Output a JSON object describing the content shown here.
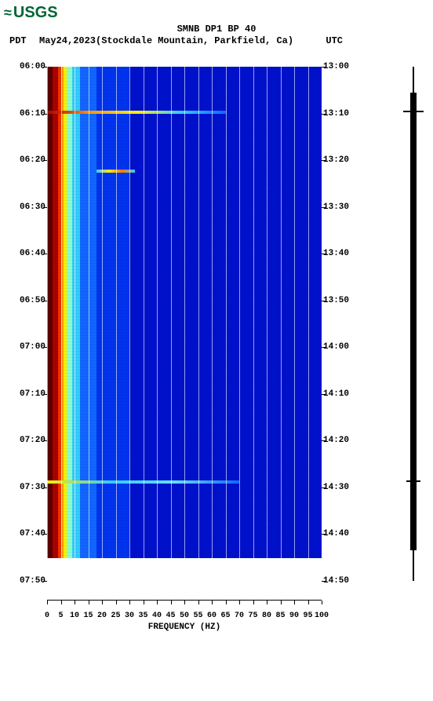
{
  "logo": {
    "prefix_icon": "≈",
    "text": "USGS",
    "color": "#006633"
  },
  "header": {
    "title": "SMNB DP1 BP 40",
    "left_tz": "PDT",
    "date_location": "May24,2023(Stockdale Mountain, Parkfield, Ca)",
    "right_tz": "UTC"
  },
  "chart": {
    "type": "spectrogram",
    "background_color": "#ffffff",
    "xlabel": "FREQUENCY (HZ)",
    "xlim": [
      0,
      100
    ],
    "xticks": [
      0,
      5,
      10,
      15,
      20,
      25,
      30,
      35,
      40,
      45,
      50,
      55,
      60,
      65,
      70,
      75,
      80,
      85,
      90,
      95,
      100
    ],
    "y_left_ticks": [
      "06:00",
      "06:10",
      "06:20",
      "06:30",
      "06:40",
      "06:50",
      "07:00",
      "07:10",
      "07:20",
      "07:30",
      "07:40",
      "07:50"
    ],
    "y_right_ticks": [
      "13:00",
      "13:10",
      "13:20",
      "13:30",
      "13:40",
      "13:50",
      "14:00",
      "14:10",
      "14:20",
      "14:30",
      "14:40",
      "14:50"
    ],
    "y_positions_pct": [
      0,
      9.09,
      18.18,
      27.27,
      36.36,
      45.45,
      54.54,
      63.63,
      72.72,
      81.81,
      90.9,
      100
    ],
    "data_end_pct": 95.5,
    "color_bands": [
      {
        "freq_from": 0,
        "freq_to": 2,
        "color": "#5a0000"
      },
      {
        "freq_from": 2,
        "freq_to": 4,
        "color": "#aa0000"
      },
      {
        "freq_from": 4,
        "freq_to": 5,
        "color": "#ee3300"
      },
      {
        "freq_from": 5,
        "freq_to": 6,
        "color": "#ff9900"
      },
      {
        "freq_from": 6,
        "freq_to": 7,
        "color": "#ffee00"
      },
      {
        "freq_from": 7,
        "freq_to": 9,
        "color": "#88ffcc"
      },
      {
        "freq_from": 9,
        "freq_to": 12,
        "color": "#33ccff"
      },
      {
        "freq_from": 12,
        "freq_to": 18,
        "color": "#1166ff"
      },
      {
        "freq_from": 18,
        "freq_to": 30,
        "color": "#0033ee"
      },
      {
        "freq_from": 30,
        "freq_to": 100,
        "color": "#0011cc"
      }
    ],
    "events": [
      {
        "time_pct": 8.6,
        "freq_to": 65,
        "colors": [
          "#aa0000",
          "#ff9900",
          "#ffee00",
          "#33ccff",
          "#1166ff"
        ]
      },
      {
        "time_pct": 20.0,
        "freq_from": 18,
        "freq_to": 32,
        "colors": [
          "#33ccff",
          "#ffee00",
          "#ff7700",
          "#33ccff"
        ]
      },
      {
        "time_pct": 80.5,
        "freq_to": 70,
        "colors": [
          "#ffee00",
          "#33ccff",
          "#66ddff",
          "#1166ff"
        ]
      }
    ],
    "gridline_color": "#ffffff",
    "tick_fontsize": 11,
    "label_fontsize": 11
  },
  "waveform": {
    "color": "#000000",
    "noise_segments_pct": [
      [
        5,
        94
      ]
    ],
    "spikes": [
      {
        "pos_pct": 8.6,
        "amp": 26
      },
      {
        "pos_pct": 80.5,
        "amp": 18
      }
    ]
  }
}
